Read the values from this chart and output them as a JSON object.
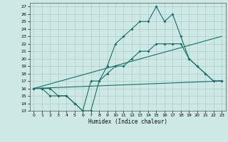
{
  "xlabel": "Humidex (Indice chaleur)",
  "background_color": "#cde8e5",
  "grid_color": "#aacfcc",
  "line_color": "#1a6e65",
  "xlim": [
    -0.5,
    23.5
  ],
  "ylim": [
    13,
    27.5
  ],
  "xticks": [
    0,
    1,
    2,
    3,
    4,
    5,
    6,
    7,
    8,
    9,
    10,
    11,
    12,
    13,
    14,
    15,
    16,
    17,
    18,
    19,
    20,
    21,
    22,
    23
  ],
  "yticks": [
    13,
    14,
    15,
    16,
    17,
    18,
    19,
    20,
    21,
    22,
    23,
    24,
    25,
    26,
    27
  ],
  "line1_x": [
    0,
    1,
    2,
    3,
    4,
    5,
    6,
    7,
    8,
    9,
    10,
    11,
    12,
    13,
    14,
    15,
    16,
    17,
    18,
    19,
    20,
    21,
    22,
    23
  ],
  "line1_y": [
    16,
    16,
    16,
    15,
    15,
    14,
    13,
    13,
    17,
    19,
    22,
    23,
    24,
    25,
    25,
    27,
    25,
    26,
    23,
    20,
    19,
    18,
    17,
    17
  ],
  "line2_x": [
    0,
    1,
    2,
    3,
    4,
    5,
    6,
    7,
    8,
    9,
    10,
    11,
    12,
    13,
    14,
    15,
    16,
    17,
    18,
    19,
    20,
    21,
    22,
    23
  ],
  "line2_y": [
    16,
    16,
    15,
    15,
    15,
    14,
    13,
    17,
    17,
    18,
    19,
    19,
    20,
    21,
    21,
    22,
    22,
    22,
    22,
    20,
    19,
    18,
    17,
    17
  ],
  "line3_x": [
    0,
    23
  ],
  "line3_y": [
    16,
    23
  ],
  "line4_x": [
    0,
    23
  ],
  "line4_y": [
    16,
    17
  ]
}
